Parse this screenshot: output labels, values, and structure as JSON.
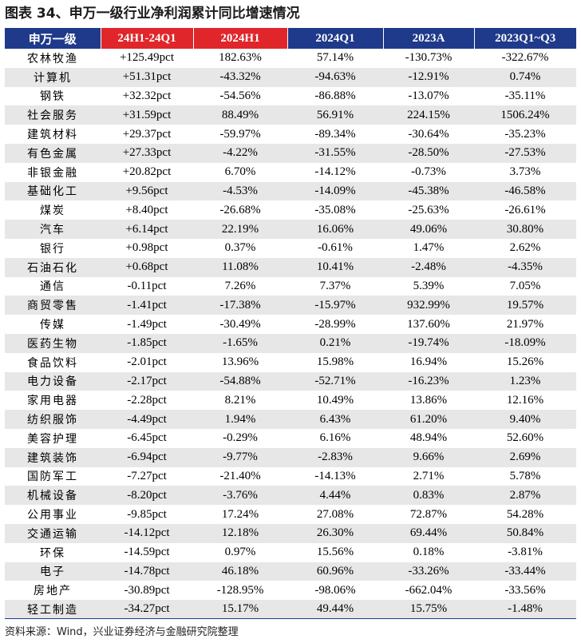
{
  "title": "图表 34、申万一级行业净利润累计同比增速情况",
  "columns": [
    "申万一级",
    "24H1-24Q1",
    "2024H1",
    "2024Q1",
    "2023A",
    "2023Q1~Q3"
  ],
  "header_colors": {
    "navy": "#1f3a8a",
    "red": "#e0262a"
  },
  "rows": [
    [
      "农林牧渔",
      "+125.49pct",
      "182.63%",
      "57.14%",
      "-130.73%",
      "-322.67%"
    ],
    [
      "计算机",
      "+51.31pct",
      "-43.32%",
      "-94.63%",
      "-12.91%",
      "0.74%"
    ],
    [
      "钢铁",
      "+32.32pct",
      "-54.56%",
      "-86.88%",
      "-13.07%",
      "-35.11%"
    ],
    [
      "社会服务",
      "+31.59pct",
      "88.49%",
      "56.91%",
      "224.15%",
      "1506.24%"
    ],
    [
      "建筑材料",
      "+29.37pct",
      "-59.97%",
      "-89.34%",
      "-30.64%",
      "-35.23%"
    ],
    [
      "有色金属",
      "+27.33pct",
      "-4.22%",
      "-31.55%",
      "-28.50%",
      "-27.53%"
    ],
    [
      "非银金融",
      "+20.82pct",
      "6.70%",
      "-14.12%",
      "-0.73%",
      "3.73%"
    ],
    [
      "基础化工",
      "+9.56pct",
      "-4.53%",
      "-14.09%",
      "-45.38%",
      "-46.58%"
    ],
    [
      "煤炭",
      "+8.40pct",
      "-26.68%",
      "-35.08%",
      "-25.63%",
      "-26.61%"
    ],
    [
      "汽车",
      "+6.14pct",
      "22.19%",
      "16.06%",
      "49.06%",
      "30.80%"
    ],
    [
      "银行",
      "+0.98pct",
      "0.37%",
      "-0.61%",
      "1.47%",
      "2.62%"
    ],
    [
      "石油石化",
      "+0.68pct",
      "11.08%",
      "10.41%",
      "-2.48%",
      "-4.35%"
    ],
    [
      "通信",
      "-0.11pct",
      "7.26%",
      "7.37%",
      "5.39%",
      "7.05%"
    ],
    [
      "商贸零售",
      "-1.41pct",
      "-17.38%",
      "-15.97%",
      "932.99%",
      "19.57%"
    ],
    [
      "传媒",
      "-1.49pct",
      "-30.49%",
      "-28.99%",
      "137.60%",
      "21.97%"
    ],
    [
      "医药生物",
      "-1.85pct",
      "-1.65%",
      "0.21%",
      "-19.74%",
      "-18.09%"
    ],
    [
      "食品饮料",
      "-2.01pct",
      "13.96%",
      "15.98%",
      "16.94%",
      "15.26%"
    ],
    [
      "电力设备",
      "-2.17pct",
      "-54.88%",
      "-52.71%",
      "-16.23%",
      "1.23%"
    ],
    [
      "家用电器",
      "-2.28pct",
      "8.21%",
      "10.49%",
      "13.86%",
      "12.16%"
    ],
    [
      "纺织服饰",
      "-4.49pct",
      "1.94%",
      "6.43%",
      "61.20%",
      "9.40%"
    ],
    [
      "美容护理",
      "-6.45pct",
      "-0.29%",
      "6.16%",
      "48.94%",
      "52.60%"
    ],
    [
      "建筑装饰",
      "-6.94pct",
      "-9.77%",
      "-2.83%",
      "9.66%",
      "2.69%"
    ],
    [
      "国防军工",
      "-7.27pct",
      "-21.40%",
      "-14.13%",
      "2.71%",
      "5.78%"
    ],
    [
      "机械设备",
      "-8.20pct",
      "-3.76%",
      "4.44%",
      "0.83%",
      "2.87%"
    ],
    [
      "公用事业",
      "-9.85pct",
      "17.24%",
      "27.08%",
      "72.87%",
      "54.28%"
    ],
    [
      "交通运输",
      "-14.12pct",
      "12.18%",
      "26.30%",
      "69.44%",
      "50.84%"
    ],
    [
      "环保",
      "-14.59pct",
      "0.97%",
      "15.56%",
      "0.18%",
      "-3.81%"
    ],
    [
      "电子",
      "-14.78pct",
      "46.18%",
      "60.96%",
      "-33.26%",
      "-33.44%"
    ],
    [
      "房地产",
      "-30.89pct",
      "-128.95%",
      "-98.06%",
      "-662.04%",
      "-33.56%"
    ],
    [
      "轻工制造",
      "-34.27pct",
      "15.17%",
      "49.44%",
      "15.75%",
      "-1.48%"
    ]
  ],
  "source": "资料来源：Wind，兴业证券经济与金融研究院整理"
}
